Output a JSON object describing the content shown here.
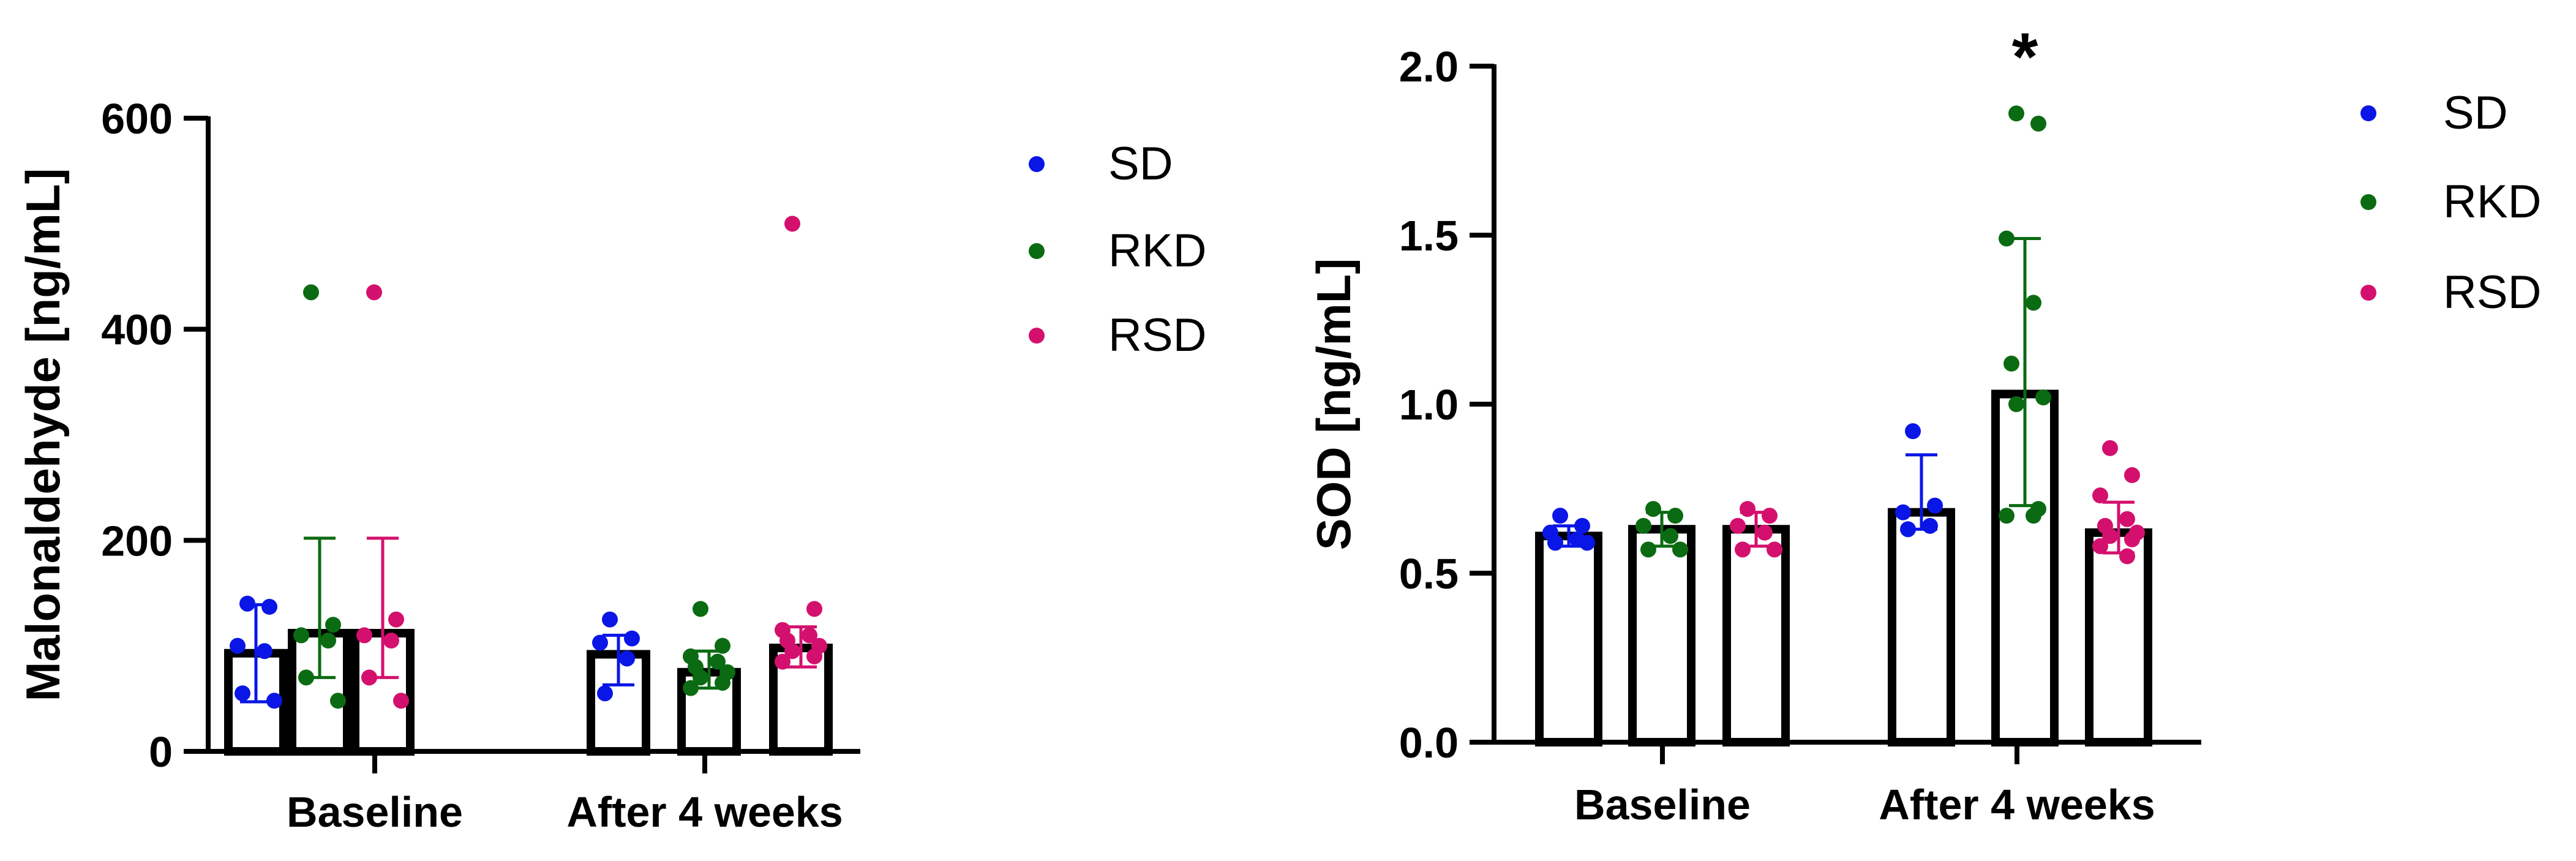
{
  "colors": {
    "axis": "#000000",
    "bar_fill": "#ffffff",
    "bar_stroke": "#000000",
    "SD": "#0a16e6",
    "RKD": "#0b6b12",
    "RSD": "#d4106e"
  },
  "chart_data": [
    {
      "type": "bar",
      "ylabel": "Malonaldehyde [ng/mL]",
      "xlabel": "",
      "ylim": [
        0,
        600
      ],
      "yticks": [
        0,
        200,
        400,
        600
      ],
      "tick_format": 0,
      "categories": [
        "Baseline",
        "After 4 weeks"
      ],
      "legend": {
        "position": "right",
        "entries": [
          "SD",
          "RKD",
          "RSD"
        ]
      },
      "annotations": [],
      "series": [
        {
          "name": "SD",
          "values": [
            93,
            92
          ],
          "error_low": [
            47,
            63
          ],
          "error_high": [
            139,
            110
          ],
          "points": [
            [
              140,
              137,
              100,
              95,
              55,
              48
            ],
            [
              125,
              107,
              103,
              88,
              55
            ]
          ]
        },
        {
          "name": "RKD",
          "values": [
            112,
            75
          ],
          "error_low": [
            70,
            60
          ],
          "error_high": [
            202,
            95
          ],
          "points": [
            [
              435,
              120,
              110,
              105,
              70,
              48
            ],
            [
              135,
              100,
              90,
              85,
              80,
              75,
              70,
              65,
              60
            ]
          ]
        },
        {
          "name": "RSD",
          "values": [
            112,
            98
          ],
          "error_low": [
            70,
            80
          ],
          "error_high": [
            202,
            118
          ],
          "points": [
            [
              435,
              125,
              110,
              105,
              70,
              48
            ],
            [
              500,
              135,
              115,
              110,
              105,
              100,
              95,
              90,
              85
            ]
          ]
        }
      ]
    },
    {
      "type": "bar",
      "ylabel": "SOD [ng/mL]",
      "xlabel": "",
      "ylim": [
        0,
        2.0
      ],
      "yticks": [
        0.0,
        0.5,
        1.0,
        1.5,
        2.0
      ],
      "tick_format": 1,
      "categories": [
        "Baseline",
        "After 4 weeks"
      ],
      "legend": {
        "position": "right",
        "entries": [
          "SD",
          "RKD",
          "RSD"
        ]
      },
      "annotations": [
        {
          "text": "*",
          "series": "RKD",
          "category": "After 4 weeks"
        }
      ],
      "series": [
        {
          "name": "SD",
          "values": [
            0.61,
            0.68
          ],
          "error_low": [
            0.58,
            0.63
          ],
          "error_high": [
            0.64,
            0.85
          ],
          "points": [
            [
              0.67,
              0.64,
              0.62,
              0.6,
              0.59,
              0.59
            ],
            [
              0.92,
              0.7,
              0.68,
              0.64,
              0.63
            ]
          ]
        },
        {
          "name": "RKD",
          "values": [
            0.63,
            1.03
          ],
          "error_low": [
            0.58,
            0.7
          ],
          "error_high": [
            0.68,
            1.49
          ],
          "points": [
            [
              0.69,
              0.67,
              0.64,
              0.61,
              0.57,
              0.57
            ],
            [
              1.86,
              1.83,
              1.49,
              1.3,
              1.12,
              1.02,
              1.0,
              0.69,
              0.67,
              0.67
            ]
          ]
        },
        {
          "name": "RSD",
          "values": [
            0.63,
            0.62
          ],
          "error_low": [
            0.58,
            0.56
          ],
          "error_high": [
            0.68,
            0.71
          ],
          "points": [
            [
              0.69,
              0.67,
              0.64,
              0.62,
              0.57,
              0.57
            ],
            [
              0.87,
              0.79,
              0.73,
              0.66,
              0.64,
              0.62,
              0.61,
              0.6,
              0.58,
              0.55
            ]
          ]
        }
      ]
    }
  ]
}
